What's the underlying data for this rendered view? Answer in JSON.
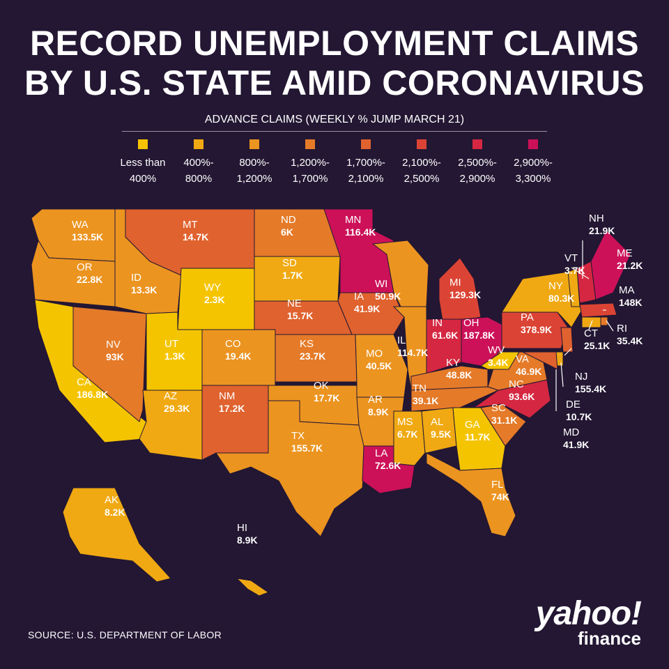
{
  "title": {
    "line1": "RECORD UNEMPLOYMENT CLAIMS",
    "line2": "BY U.S. STATE AMID CORONAVIRUS"
  },
  "subtitle": "ADVANCE CLAIMS (WEEKLY % JUMP MARCH 21)",
  "legend": [
    {
      "label": "Less than\n400%",
      "color": "#f5c400"
    },
    {
      "label": "400%-\n800%",
      "color": "#f0a912"
    },
    {
      "label": "800%-\n1,200%",
      "color": "#ec9420"
    },
    {
      "label": "1,200%-\n1,700%",
      "color": "#e57a28"
    },
    {
      "label": "1,700%-\n2,100%",
      "color": "#e0622e"
    },
    {
      "label": "2,100%-\n2,500%",
      "color": "#db4434"
    },
    {
      "label": "2,500%-\n2,900%",
      "color": "#d52741"
    },
    {
      "label": "2,900%-\n3,300%",
      "color": "#cc1158"
    }
  ],
  "states": [
    {
      "abbr": "WA",
      "value": "133.5K",
      "color": "#ec9420"
    },
    {
      "abbr": "OR",
      "value": "22.8K",
      "color": "#ec9420"
    },
    {
      "abbr": "CA",
      "value": "186.8K",
      "color": "#f5c400"
    },
    {
      "abbr": "NV",
      "value": "93K",
      "color": "#e57a28"
    },
    {
      "abbr": "ID",
      "value": "13.3K",
      "color": "#ec9420"
    },
    {
      "abbr": "MT",
      "value": "14.7K",
      "color": "#e0622e"
    },
    {
      "abbr": "WY",
      "value": "2.3K",
      "color": "#f5c400"
    },
    {
      "abbr": "UT",
      "value": "1.3K",
      "color": "#f5c400"
    },
    {
      "abbr": "AZ",
      "value": "29.3K",
      "color": "#f0a912"
    },
    {
      "abbr": "CO",
      "value": "19.4K",
      "color": "#ec9420"
    },
    {
      "abbr": "NM",
      "value": "17.2K",
      "color": "#e0622e"
    },
    {
      "abbr": "ND",
      "value": "6K",
      "color": "#e57a28"
    },
    {
      "abbr": "SD",
      "value": "1.7K",
      "color": "#f0a912"
    },
    {
      "abbr": "NE",
      "value": "15.7K",
      "color": "#e0622e"
    },
    {
      "abbr": "KS",
      "value": "23.7K",
      "color": "#e57a28"
    },
    {
      "abbr": "OK",
      "value": "17.7K",
      "color": "#ec9420"
    },
    {
      "abbr": "TX",
      "value": "155.7K",
      "color": "#ec9420"
    },
    {
      "abbr": "MN",
      "value": "116.4K",
      "color": "#cc1158"
    },
    {
      "abbr": "IA",
      "value": "41.9K",
      "color": "#e0622e"
    },
    {
      "abbr": "MO",
      "value": "40.5K",
      "color": "#ec9420"
    },
    {
      "abbr": "AR",
      "value": "8.9K",
      "color": "#ec9420"
    },
    {
      "abbr": "LA",
      "value": "72.6K",
      "color": "#cc1158"
    },
    {
      "abbr": "WI",
      "value": "50.9K",
      "color": "#ec9420"
    },
    {
      "abbr": "IL",
      "value": "114.7K",
      "color": "#ec9420"
    },
    {
      "abbr": "MI",
      "value": "129.3K",
      "color": "#db4434"
    },
    {
      "abbr": "IN",
      "value": "61.6K",
      "color": "#d52741"
    },
    {
      "abbr": "OH",
      "value": "187.8K",
      "color": "#cc1158"
    },
    {
      "abbr": "KY",
      "value": "48.8K",
      "color": "#e57a28"
    },
    {
      "abbr": "TN",
      "value": "39.1K",
      "color": "#e57a28"
    },
    {
      "abbr": "MS",
      "value": "6.7K",
      "color": "#f0a912"
    },
    {
      "abbr": "AL",
      "value": "9.5K",
      "color": "#f0a912"
    },
    {
      "abbr": "GA",
      "value": "11.7K",
      "color": "#f5c400"
    },
    {
      "abbr": "FL",
      "value": "74K",
      "color": "#ec9420"
    },
    {
      "abbr": "SC",
      "value": "31.1K",
      "color": "#e57a28"
    },
    {
      "abbr": "NC",
      "value": "93.6K",
      "color": "#d52741"
    },
    {
      "abbr": "VA",
      "value": "46.9K",
      "color": "#e57a28"
    },
    {
      "abbr": "WV",
      "value": "3.4K",
      "color": "#f5c400"
    },
    {
      "abbr": "PA",
      "value": "378.9K",
      "color": "#db4434"
    },
    {
      "abbr": "NY",
      "value": "80.3K",
      "color": "#f0a912"
    },
    {
      "abbr": "VT",
      "value": "3.7K",
      "color": "#f0a912"
    },
    {
      "abbr": "NH",
      "value": "21.9K",
      "color": "#d52741"
    },
    {
      "abbr": "ME",
      "value": "21.2K",
      "color": "#cc1158"
    },
    {
      "abbr": "MA",
      "value": "148K",
      "color": "#db4434"
    },
    {
      "abbr": "RI",
      "value": "35.4K",
      "color": "#e57a28"
    },
    {
      "abbr": "CT",
      "value": "25.1K",
      "color": "#f0a912"
    },
    {
      "abbr": "NJ",
      "value": "155.4K",
      "color": "#e0622e"
    },
    {
      "abbr": "DE",
      "value": "10.7K",
      "color": "#f0a912"
    },
    {
      "abbr": "MD",
      "value": "41.9K",
      "color": "#e0622e"
    },
    {
      "abbr": "AK",
      "value": "8.2K",
      "color": "#f0a912"
    },
    {
      "abbr": "HI",
      "value": "8.9K",
      "color": "#f0a912"
    }
  ],
  "source": "SOURCE:  U.S. DEPARTMENT OF LABOR",
  "logo": {
    "brand": "yahoo!",
    "sub": "finance"
  }
}
